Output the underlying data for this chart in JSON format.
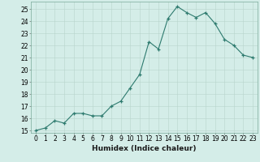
{
  "x": [
    0,
    1,
    2,
    3,
    4,
    5,
    6,
    7,
    8,
    9,
    10,
    11,
    12,
    13,
    14,
    15,
    16,
    17,
    18,
    19,
    20,
    21,
    22,
    23
  ],
  "y": [
    15.0,
    15.2,
    15.8,
    15.6,
    16.4,
    16.4,
    16.2,
    16.2,
    17.0,
    17.4,
    18.5,
    19.6,
    22.3,
    21.7,
    24.2,
    25.2,
    24.7,
    24.3,
    24.7,
    23.8,
    22.5,
    22.0,
    21.2,
    21.0
  ],
  "bg_color": "#d4ede8",
  "line_color": "#2d7a6e",
  "marker_color": "#2d7a6e",
  "grid_color": "#b8d4cc",
  "xlabel": "Humidex (Indice chaleur)",
  "xlim": [
    -0.5,
    23.5
  ],
  "ylim": [
    14.8,
    25.6
  ],
  "yticks": [
    15,
    16,
    17,
    18,
    19,
    20,
    21,
    22,
    23,
    24,
    25
  ],
  "xticks": [
    0,
    1,
    2,
    3,
    4,
    5,
    6,
    7,
    8,
    9,
    10,
    11,
    12,
    13,
    14,
    15,
    16,
    17,
    18,
    19,
    20,
    21,
    22,
    23
  ],
  "tick_fontsize": 5.5,
  "label_fontsize": 6.5
}
